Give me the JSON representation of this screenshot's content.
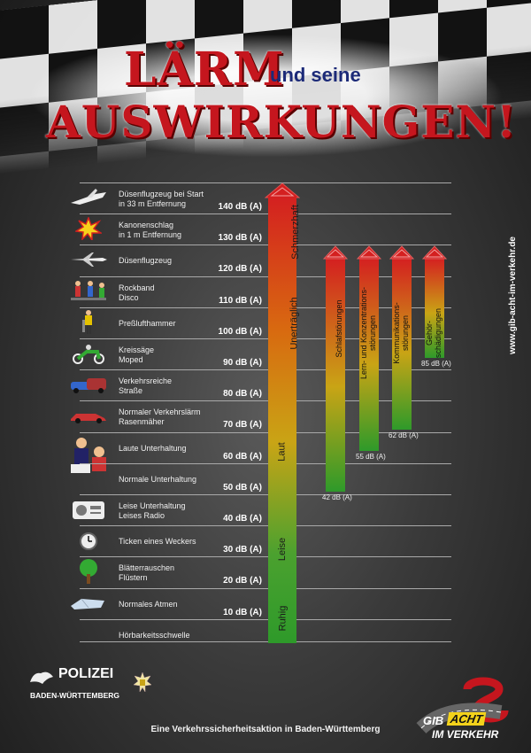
{
  "title": {
    "line1": "LÄRM",
    "line1b": "und seine",
    "line2": "AUSWIRKUNGEN!"
  },
  "levels": [
    {
      "label": "Düsenflugzeug bei Start\nin 33 m Entfernung",
      "db": "140 dB (A)",
      "icon": "jet-start-icon"
    },
    {
      "label": "Kanonenschlag\nin 1 m Entfernung",
      "db": "130 dB (A)",
      "icon": "explosion-icon"
    },
    {
      "label": "Düsenflugzeug",
      "db": "120 dB (A)",
      "icon": "jet-icon"
    },
    {
      "label": "Rockband\nDisco",
      "db": "110 dB (A)",
      "icon": "rockband-icon"
    },
    {
      "label": "Preßlufthammer",
      "db": "100 dB (A)",
      "icon": "jackhammer-icon"
    },
    {
      "label": "Kreissäge\nMoped",
      "db": "90 dB (A)",
      "icon": "moped-icon"
    },
    {
      "label": "Verkehrsreiche\nStraße",
      "db": "80 dB (A)",
      "icon": "traffic-icon"
    },
    {
      "label": "Normaler Verkehrslärm\nRasenmäher",
      "db": "70 dB (A)",
      "icon": "car-icon"
    },
    {
      "label": "Laute Unterhaltung",
      "db": "60 dB (A)",
      "icon": "conversation-icon"
    },
    {
      "label": "Normale Unterhaltung",
      "db": "50 dB (A)",
      "icon": ""
    },
    {
      "label": "Leise Unterhaltung\nLeises Radio",
      "db": "40 dB (A)",
      "icon": "radio-icon"
    },
    {
      "label": "Ticken eines Weckers",
      "db": "30 dB (A)",
      "icon": "alarm-clock-icon"
    },
    {
      "label": "Blätterrauschen\nFlüstern",
      "db": "20 dB (A)",
      "icon": "tree-icon"
    },
    {
      "label": "Normales Atmen",
      "db": "10 dB (A)",
      "icon": "breathing-icon"
    },
    {
      "label": "Hörbarkeitsschwelle",
      "db": "",
      "icon": ""
    }
  ],
  "zones": [
    "Schmerzhaft",
    "Unerträglich",
    "Laut",
    "Leise",
    "Ruhig"
  ],
  "effects": [
    {
      "label": "Schlafstörungen",
      "value": "42 dB (A)",
      "db": 42
    },
    {
      "label": "Lern- und Konzentrations-\nstörungen",
      "value": "55 dB (A)",
      "db": 55
    },
    {
      "label": "Kommunikations-\nstörungen",
      "value": "62 dB (A)",
      "db": 62
    },
    {
      "label": "Gehör-\nschädigungen",
      "value": "85 dB (A)",
      "db": 85
    }
  ],
  "url": "www.gib-acht-im-verkehr.de",
  "police": {
    "name": "POLIZEI",
    "region": "BADEN-WÜRTTEMBERG"
  },
  "logo": {
    "line1": "GIB",
    "line2": "ACHT",
    "line3": "IM VERKEHR"
  },
  "footer": "Eine Verkehrssicherheitsaktion in Baden-Württemberg",
  "colors": {
    "title_red": "#c5161e",
    "bar_top": "#d42020",
    "bar_bottom": "#2e9a2a"
  }
}
